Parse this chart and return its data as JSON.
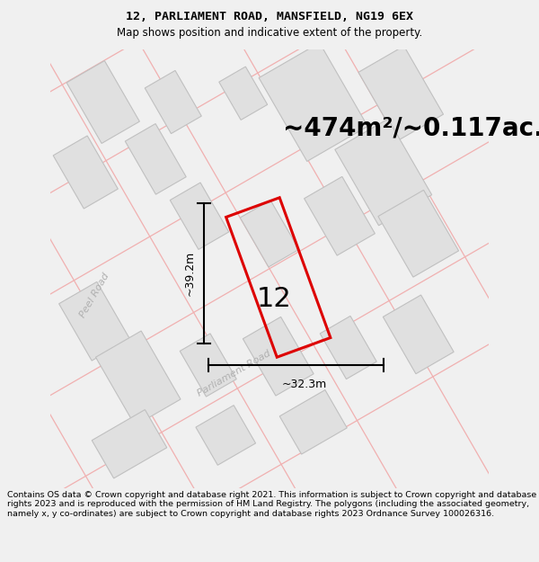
{
  "title_line1": "12, PARLIAMENT ROAD, MANSFIELD, NG19 6EX",
  "title_line2": "Map shows position and indicative extent of the property.",
  "area_text": "~474m²/~0.117ac.",
  "property_number": "12",
  "dim_vertical": "~39.2m",
  "dim_horizontal": "~32.3m",
  "road_label1": "Peel Road",
  "road_label2": "Parliament Road",
  "footer_text": "Contains OS data © Crown copyright and database right 2021. This information is subject to Crown copyright and database rights 2023 and is reproduced with the permission of HM Land Registry. The polygons (including the associated geometry, namely x, y co-ordinates) are subject to Crown copyright and database rights 2023 Ordnance Survey 100026316.",
  "background_color": "#f0f0f0",
  "map_bg_color": "#f8f8f8",
  "plot_outline_color": "#dd0000",
  "building_fill": "#e0e0e0",
  "building_edge": "#c0c0c0",
  "road_line_color": "#f0b0b0",
  "title_fontsize": 9.5,
  "subtitle_fontsize": 8.5,
  "area_fontsize": 20,
  "dim_fontsize": 9,
  "number_fontsize": 22,
  "road_label_fontsize": 8,
  "footer_fontsize": 6.8
}
